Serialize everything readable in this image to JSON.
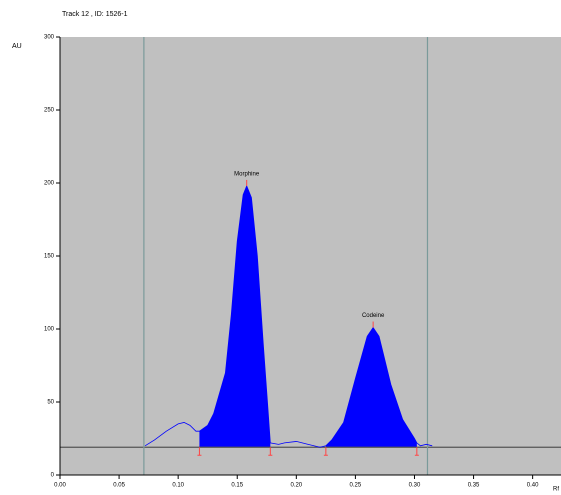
{
  "chart_data": {
    "type": "line",
    "title": "Track 12 , ID: 1526-1",
    "y_label": "AU",
    "x_label": "Rf",
    "x": [
      0.072,
      0.08,
      0.09,
      0.1,
      0.105,
      0.11,
      0.115,
      0.118,
      0.125,
      0.13,
      0.14,
      0.145,
      0.15,
      0.155,
      0.158,
      0.162,
      0.167,
      0.172,
      0.176,
      0.178,
      0.185,
      0.19,
      0.2,
      0.21,
      0.22,
      0.225,
      0.23,
      0.24,
      0.25,
      0.26,
      0.265,
      0.27,
      0.28,
      0.29,
      0.3,
      0.302,
      0.305,
      0.31,
      0.315
    ],
    "values": [
      20,
      24,
      30,
      35,
      36,
      34,
      30,
      30,
      34,
      42,
      70,
      110,
      160,
      192,
      198,
      190,
      150,
      90,
      45,
      22,
      21,
      22,
      23,
      21,
      19,
      20,
      24,
      36,
      66,
      95,
      101,
      95,
      62,
      38,
      25,
      22,
      20,
      21,
      20
    ],
    "color": "#0000ff",
    "baseline": 19,
    "markers": [
      0.071,
      0.311
    ],
    "peaks": [
      {
        "label": "Morphine",
        "x": 0.158,
        "y": 198,
        "start": 0.118,
        "end": 0.178
      },
      {
        "label": "Codeine",
        "x": 0.265,
        "y": 101,
        "start": 0.225,
        "end": 0.302
      }
    ],
    "xlim": [
      0,
      0.424
    ],
    "ylim": [
      0,
      300
    ],
    "xticks": [
      {
        "value": 0,
        "label": "0.00"
      },
      {
        "value": 0.05,
        "label": "0.05"
      },
      {
        "value": 0.1,
        "label": "0.10"
      },
      {
        "value": 0.15,
        "label": "0.15"
      },
      {
        "value": 0.2,
        "label": "0.20"
      },
      {
        "value": 0.25,
        "label": "0.25"
      },
      {
        "value": 0.3,
        "label": "0.30"
      },
      {
        "value": 0.35,
        "label": "0.35"
      },
      {
        "value": 0.4,
        "label": "0.40"
      }
    ],
    "yticks": [
      0,
      50,
      100,
      150,
      200,
      250,
      300
    ]
  }
}
